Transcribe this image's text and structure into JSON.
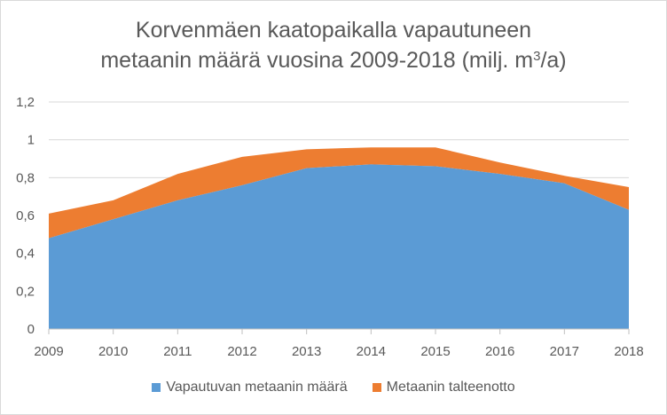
{
  "title_line1": "Korvenmäen  kaatopaikalla vapautuneen",
  "title_line2_pre": "metaanin määrä vuosina 2009-2018 (milj. m",
  "title_line2_sup": "3",
  "title_line2_post": "/a)",
  "chart_data": {
    "type": "area",
    "stacked": true,
    "title": "Korvenmäen  kaatopaikalla vapautuneen metaanin määrä vuosina 2009-2018 (milj. m3/a)",
    "x": [
      "2009",
      "2010",
      "2011",
      "2012",
      "2013",
      "2014",
      "2015",
      "2016",
      "2017",
      "2018"
    ],
    "series": [
      {
        "name": "Vapautuvan metaanin määrä",
        "color": "#5b9bd5",
        "values": [
          0.48,
          0.58,
          0.68,
          0.76,
          0.85,
          0.87,
          0.86,
          0.82,
          0.77,
          0.63
        ]
      },
      {
        "name": "Metaanin talteenotto",
        "color": "#ed7d31",
        "values": [
          0.13,
          0.1,
          0.14,
          0.15,
          0.1,
          0.09,
          0.1,
          0.06,
          0.04,
          0.12
        ]
      }
    ],
    "yticks": [
      "0",
      "0,2",
      "0,4",
      "0,6",
      "0,8",
      "1",
      "1,2"
    ],
    "ylim": [
      0,
      1.2
    ],
    "grid": true,
    "legend_position": "bottom"
  }
}
